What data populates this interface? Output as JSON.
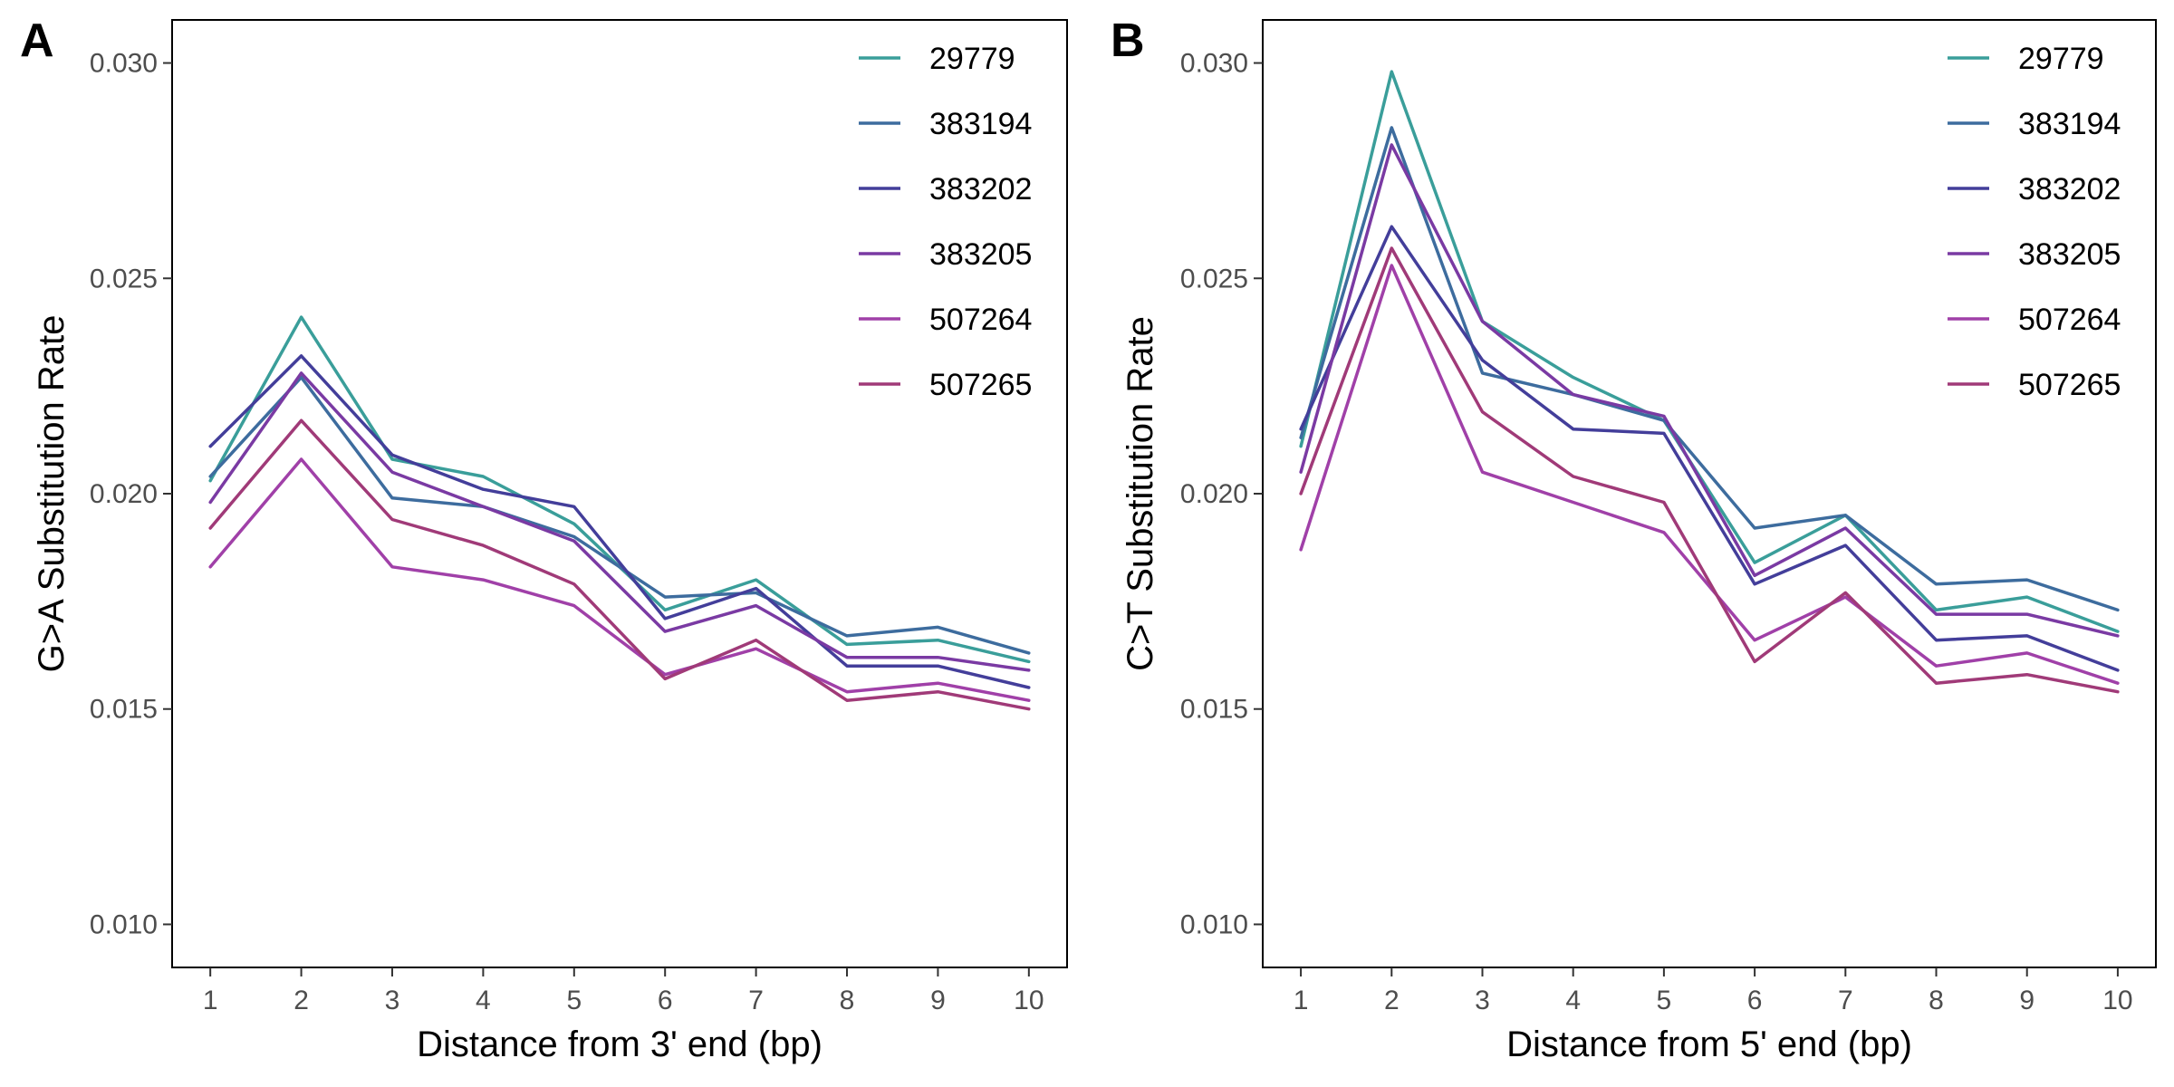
{
  "chart_data": [
    {
      "panel_label": "A",
      "type": "line",
      "xlabel": "Distance from 3' end (bp)",
      "ylabel": "G>A Substitution Rate",
      "x": [
        1,
        2,
        3,
        4,
        5,
        6,
        7,
        8,
        9,
        10
      ],
      "xticks": [
        "1",
        "2",
        "3",
        "4",
        "5",
        "6",
        "7",
        "8",
        "9",
        "10"
      ],
      "xlim": [
        0.58,
        10.42
      ],
      "ylim": [
        0.009,
        0.031
      ],
      "yticks": [
        "0.010",
        "0.015",
        "0.020",
        "0.025",
        "0.030"
      ],
      "yticks_values": [
        0.01,
        0.015,
        0.02,
        0.025,
        0.03
      ],
      "grid": false,
      "legend_position": "top-right",
      "series": [
        {
          "name": "29779",
          "color": "#3a9e9a",
          "values": [
            0.0203,
            0.0241,
            0.0208,
            0.0204,
            0.0193,
            0.0173,
            0.018,
            0.0165,
            0.0166,
            0.0161
          ]
        },
        {
          "name": "383194",
          "color": "#3d6c9e",
          "values": [
            0.0204,
            0.0227,
            0.0199,
            0.0197,
            0.019,
            0.0176,
            0.0177,
            0.0167,
            0.0169,
            0.0163
          ]
        },
        {
          "name": "383202",
          "color": "#433e9a",
          "values": [
            0.0211,
            0.0232,
            0.0209,
            0.0201,
            0.0197,
            0.0171,
            0.0178,
            0.016,
            0.016,
            0.0155
          ]
        },
        {
          "name": "383205",
          "color": "#7a3aa3",
          "values": [
            0.0198,
            0.0228,
            0.0205,
            0.0197,
            0.0189,
            0.0168,
            0.0174,
            0.0162,
            0.0162,
            0.0159
          ]
        },
        {
          "name": "507264",
          "color": "#a040a8",
          "values": [
            0.0183,
            0.0208,
            0.0183,
            0.018,
            0.0174,
            0.0158,
            0.0164,
            0.0154,
            0.0156,
            0.0152
          ]
        },
        {
          "name": "507265",
          "color": "#a03a78",
          "values": [
            0.0192,
            0.0217,
            0.0194,
            0.0188,
            0.0179,
            0.0157,
            0.0166,
            0.0152,
            0.0154,
            0.015
          ]
        }
      ]
    },
    {
      "panel_label": "B",
      "type": "line",
      "xlabel": "Distance from 5' end (bp)",
      "ylabel": "C>T Substitution Rate",
      "x": [
        1,
        2,
        3,
        4,
        5,
        6,
        7,
        8,
        9,
        10
      ],
      "xticks": [
        "1",
        "2",
        "3",
        "4",
        "5",
        "6",
        "7",
        "8",
        "9",
        "10"
      ],
      "xlim": [
        0.58,
        10.42
      ],
      "ylim": [
        0.009,
        0.031
      ],
      "yticks": [
        "0.010",
        "0.015",
        "0.020",
        "0.025",
        "0.030"
      ],
      "yticks_values": [
        0.01,
        0.015,
        0.02,
        0.025,
        0.03
      ],
      "grid": false,
      "legend_position": "top-right",
      "series": [
        {
          "name": "29779",
          "color": "#3a9e9a",
          "values": [
            0.0211,
            0.0298,
            0.024,
            0.0227,
            0.0217,
            0.0184,
            0.0195,
            0.0173,
            0.0176,
            0.0168
          ]
        },
        {
          "name": "383194",
          "color": "#3d6c9e",
          "values": [
            0.0213,
            0.0285,
            0.0228,
            0.0223,
            0.0217,
            0.0192,
            0.0195,
            0.0179,
            0.018,
            0.0173
          ]
        },
        {
          "name": "383202",
          "color": "#433e9a",
          "values": [
            0.0215,
            0.0262,
            0.0231,
            0.0215,
            0.0214,
            0.0179,
            0.0188,
            0.0166,
            0.0167,
            0.0159
          ]
        },
        {
          "name": "383205",
          "color": "#7a3aa3",
          "values": [
            0.0205,
            0.0281,
            0.024,
            0.0223,
            0.0218,
            0.0181,
            0.0192,
            0.0172,
            0.0172,
            0.0167
          ]
        },
        {
          "name": "507264",
          "color": "#a040a8",
          "values": [
            0.0187,
            0.0253,
            0.0205,
            0.0198,
            0.0191,
            0.0166,
            0.0176,
            0.016,
            0.0163,
            0.0156
          ]
        },
        {
          "name": "507265",
          "color": "#a03a78",
          "values": [
            0.02,
            0.0257,
            0.0219,
            0.0204,
            0.0198,
            0.0161,
            0.0177,
            0.0156,
            0.0158,
            0.0154
          ]
        }
      ]
    }
  ]
}
